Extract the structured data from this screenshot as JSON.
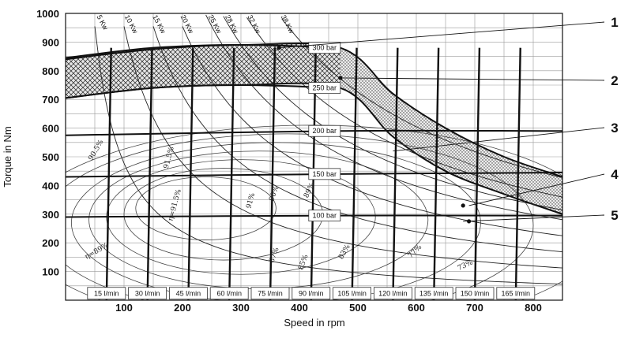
{
  "chart_data": {
    "type": "line",
    "xlabel": "Speed in rpm",
    "ylabel": "Torque in Nm",
    "xlim": [
      0,
      850
    ],
    "ylim": [
      0,
      1000
    ],
    "x_ticks": [
      "100",
      "200",
      "300",
      "400",
      "500",
      "600",
      "700",
      "800"
    ],
    "y_ticks": [
      "100",
      "200",
      "300",
      "400",
      "500",
      "600",
      "700",
      "800",
      "900",
      "1000"
    ],
    "grid": true,
    "power_curves": [
      {
        "label": "5 Kw",
        "kw": 5
      },
      {
        "label": "10 Kw",
        "kw": 10
      },
      {
        "label": "15 Kw",
        "kw": 15
      },
      {
        "label": "20 Kw",
        "kw": 20
      },
      {
        "label": "25 Kw",
        "kw": 25
      },
      {
        "label": "28 Kw",
        "kw": 28
      },
      {
        "label": "32 Kw",
        "kw": 32
      },
      {
        "label": "38 Kw",
        "kw": 38
      }
    ],
    "pressure_lines": [
      {
        "label": "100 bar",
        "x": [
          0,
          470,
          850
        ],
        "y": [
          290,
          295,
          295
        ]
      },
      {
        "label": "150 bar",
        "x": [
          0,
          470,
          850
        ],
        "y": [
          430,
          440,
          445
        ]
      },
      {
        "label": "200 bar",
        "x": [
          0,
          470,
          850
        ],
        "y": [
          575,
          590,
          590
        ]
      },
      {
        "label": "250 bar",
        "x": [
          0,
          150,
          300,
          470
        ],
        "y": [
          705,
          740,
          750,
          740
        ]
      },
      {
        "label": "300 bar",
        "x": [
          0,
          150,
          300,
          470
        ],
        "y": [
          840,
          875,
          890,
          880
        ]
      }
    ],
    "flow_lines": [
      {
        "label": "15 l/min",
        "x": 70
      },
      {
        "label": "30 l/min",
        "x": 140
      },
      {
        "label": "45 l/min",
        "x": 210
      },
      {
        "label": "60 l/min",
        "x": 280
      },
      {
        "label": "75 l/min",
        "x": 350
      },
      {
        "label": "90 l/min",
        "x": 420
      },
      {
        "label": "105 l/min",
        "x": 490
      },
      {
        "label": "120 l/min",
        "x": 560
      },
      {
        "label": "135 l/min",
        "x": 630
      },
      {
        "label": "150 l/min",
        "x": 700
      },
      {
        "label": "165 l/min",
        "x": 770
      }
    ],
    "efficiency_labels": [
      "η=89%",
      "90.5%",
      "91.5%",
      "η=91.5%",
      "91%",
      "90%",
      "89%",
      "87%",
      "85%",
      "83%",
      "77%",
      "73%"
    ],
    "max_torque_band": {
      "upper": {
        "x": [
          0,
          150,
          300,
          470,
          560,
          650,
          750,
          850
        ],
        "y": [
          845,
          880,
          890,
          880,
          720,
          600,
          500,
          430
        ]
      },
      "lower": {
        "x": [
          0,
          150,
          300,
          470,
          560,
          650,
          750,
          850
        ],
        "y": [
          705,
          740,
          750,
          740,
          570,
          450,
          370,
          300
        ]
      }
    },
    "points": [
      {
        "x": 365,
        "y": 880
      },
      {
        "x": 470,
        "y": 775
      },
      {
        "x": 680,
        "y": 330
      },
      {
        "x": 690,
        "y": 275
      }
    ],
    "callouts": [
      "1",
      "2",
      "3",
      "4",
      "5"
    ]
  }
}
